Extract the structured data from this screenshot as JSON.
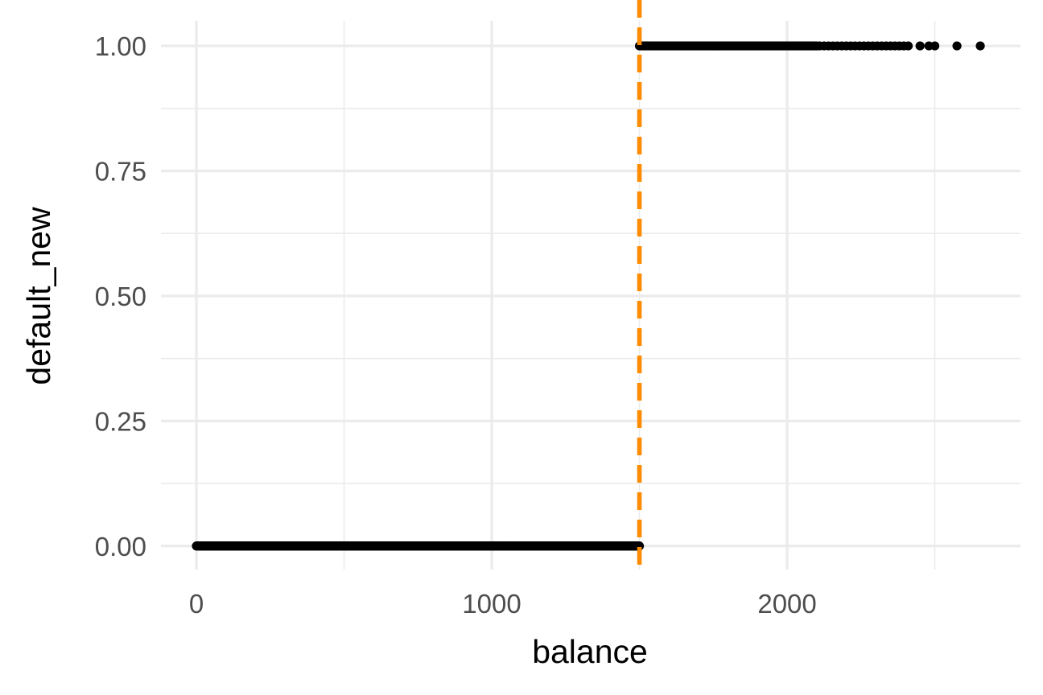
{
  "chart_data": {
    "type": "scatter",
    "title": "",
    "xlabel": "balance",
    "ylabel": "default_new",
    "xlim": [
      -120,
      2790
    ],
    "ylim": [
      -0.047,
      1.05
    ],
    "x_ticks": [
      0,
      1000,
      2000
    ],
    "x_tick_labels": [
      "0",
      "1000",
      "2000"
    ],
    "x_minor_ticks": [
      500,
      1500,
      2500
    ],
    "y_ticks": [
      0,
      0.25,
      0.5,
      0.75,
      1
    ],
    "y_tick_labels": [
      "0.00",
      "0.25",
      "0.50",
      "0.75",
      "1.00"
    ],
    "y_minor_ticks": [
      0.125,
      0.375,
      0.625,
      0.875
    ],
    "grid": true,
    "legend": "none",
    "point_color": "#000000",
    "threshold": {
      "x": 1500,
      "color": "#ff8c00",
      "style": "dashed"
    },
    "series": [
      {
        "segments": [
          {
            "y": 0,
            "x_from": 0,
            "x_to": 1500,
            "step": 2
          },
          {
            "y": 1,
            "x_from": 1500,
            "x_to": 2100,
            "step": 4
          }
        ],
        "points": [
          {
            "x": 2110,
            "y": 1
          },
          {
            "x": 2125,
            "y": 1
          },
          {
            "x": 2140,
            "y": 1
          },
          {
            "x": 2155,
            "y": 1
          },
          {
            "x": 2170,
            "y": 1
          },
          {
            "x": 2185,
            "y": 1
          },
          {
            "x": 2200,
            "y": 1
          },
          {
            "x": 2215,
            "y": 1
          },
          {
            "x": 2230,
            "y": 1
          },
          {
            "x": 2245,
            "y": 1
          },
          {
            "x": 2260,
            "y": 1
          },
          {
            "x": 2275,
            "y": 1
          },
          {
            "x": 2290,
            "y": 1
          },
          {
            "x": 2305,
            "y": 1
          },
          {
            "x": 2320,
            "y": 1
          },
          {
            "x": 2335,
            "y": 1
          },
          {
            "x": 2350,
            "y": 1
          },
          {
            "x": 2365,
            "y": 1
          },
          {
            "x": 2380,
            "y": 1
          },
          {
            "x": 2395,
            "y": 1
          },
          {
            "x": 2410,
            "y": 1
          },
          {
            "x": 2450,
            "y": 1
          },
          {
            "x": 2480,
            "y": 1
          },
          {
            "x": 2500,
            "y": 1
          },
          {
            "x": 2575,
            "y": 1
          },
          {
            "x": 2654,
            "y": 1
          }
        ]
      }
    ]
  }
}
